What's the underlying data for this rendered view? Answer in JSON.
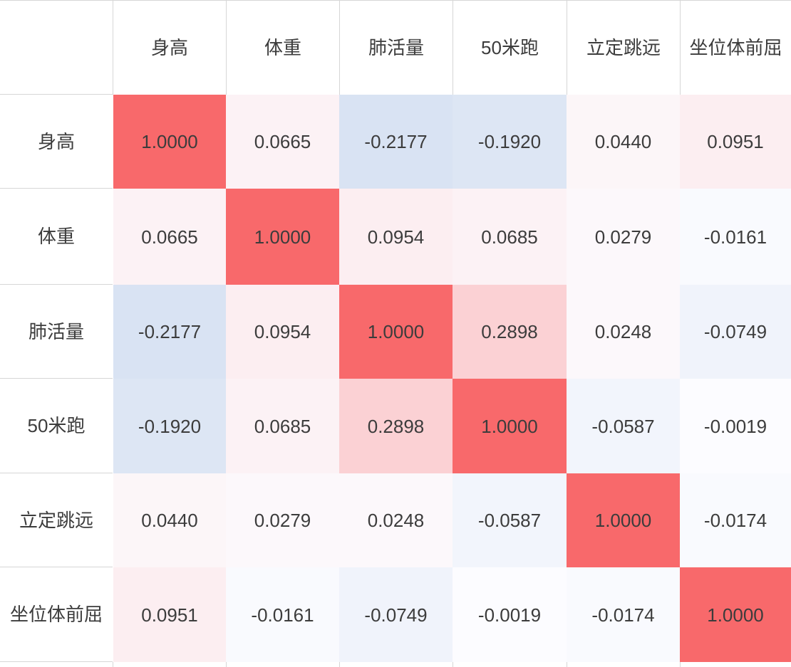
{
  "chart_data": {
    "type": "heatmap",
    "description": "correlation-matrix",
    "col_labels": [
      "身高",
      "体重",
      "肺活量",
      "50米跑",
      "立定跳远",
      "坐位体前屈"
    ],
    "row_labels": [
      "身高",
      "体重",
      "肺活量",
      "50米跑",
      "立定跳远",
      "坐位体前屈"
    ],
    "matrix": [
      [
        "1.0000",
        "0.0665",
        "-0.2177",
        "-0.1920",
        "0.0440",
        "0.0951"
      ],
      [
        "0.0665",
        "1.0000",
        "0.0954",
        "0.0685",
        "0.0279",
        "-0.0161"
      ],
      [
        "-0.2177",
        "0.0954",
        "1.0000",
        "0.2898",
        "0.0248",
        "-0.0749"
      ],
      [
        "-0.1920",
        "0.0685",
        "0.2898",
        "1.0000",
        "-0.0587",
        "-0.0019"
      ],
      [
        "0.0440",
        "0.0279",
        "0.0248",
        "-0.0587",
        "1.0000",
        "-0.0174"
      ],
      [
        "0.0951",
        "-0.0161",
        "-0.0749",
        "-0.0019",
        "-0.0174",
        "1.0000"
      ]
    ],
    "value_format": "0.0000",
    "colorscale": {
      "negative": "#5A8AC6",
      "zero": "#FCFCFF",
      "positive": "#F8696B",
      "domain": [
        -1,
        0,
        1
      ]
    },
    "grid_color": "#D6D6D6",
    "text_color": "#3C3C3C",
    "legend_position": "none",
    "grid": "excel-gridlines"
  }
}
